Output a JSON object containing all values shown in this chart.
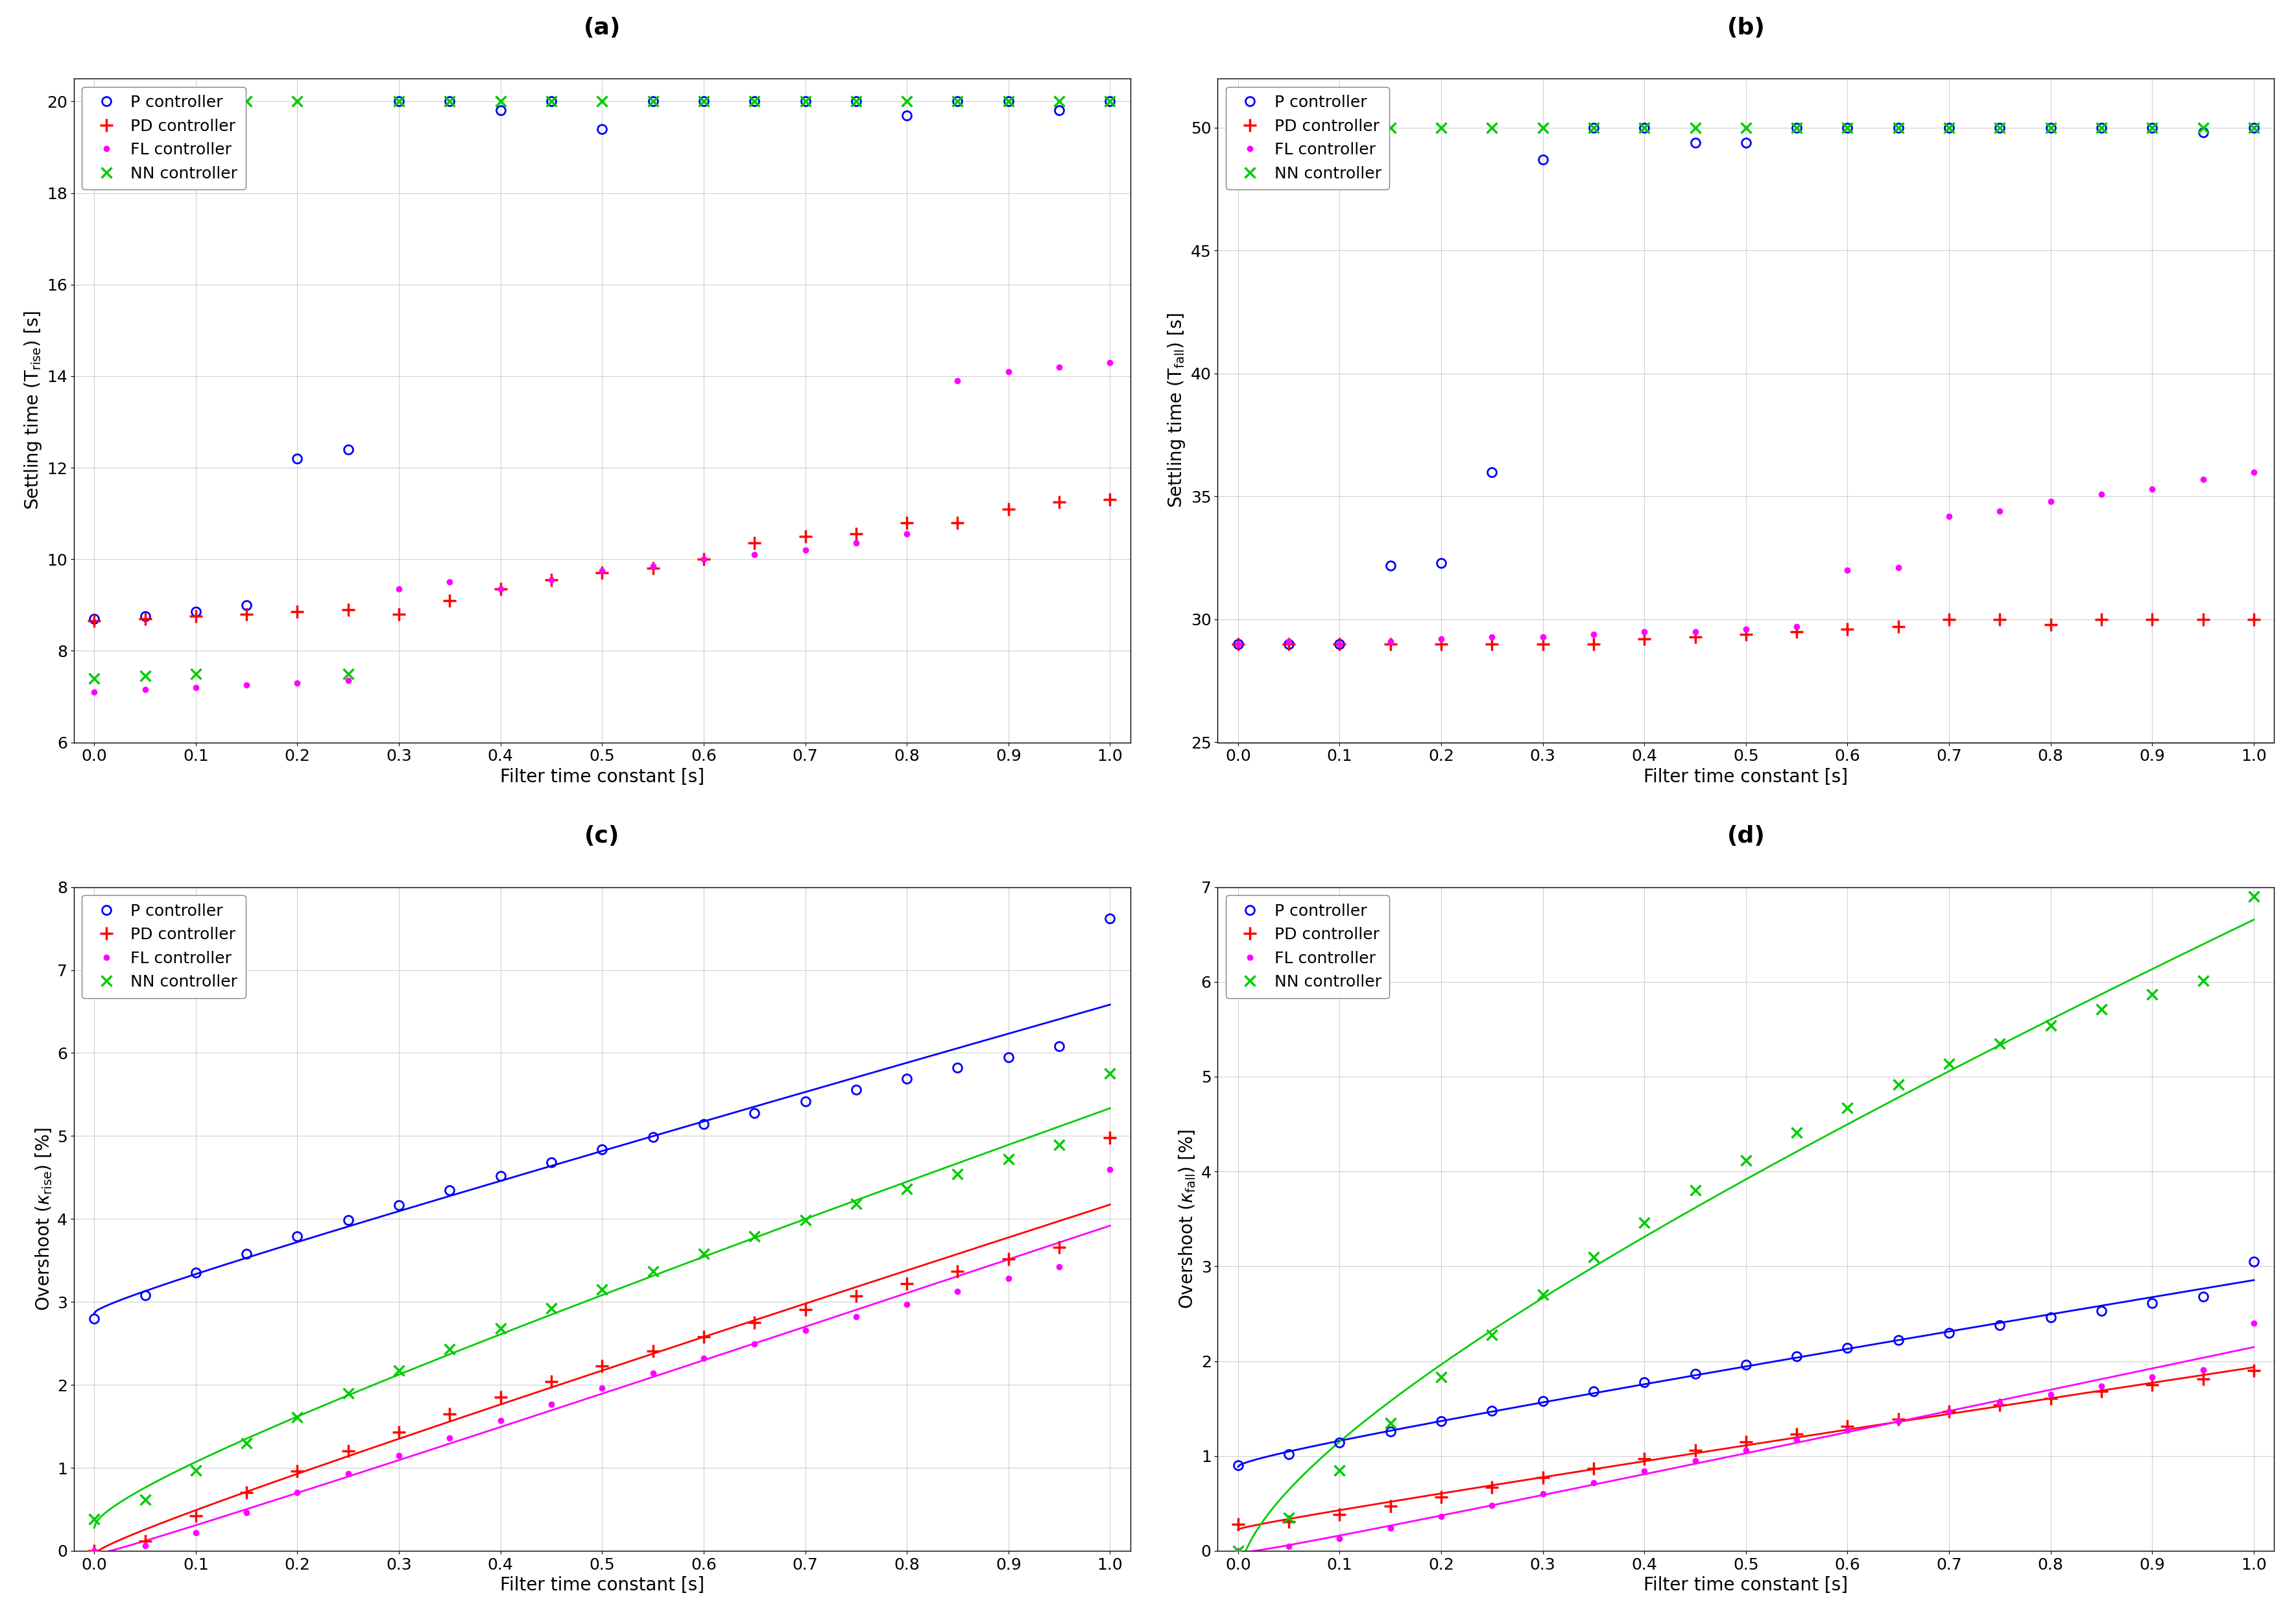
{
  "fig_width": 35.41,
  "fig_height": 24.93,
  "background_color": "#ffffff",
  "subplot_labels": [
    "(a)",
    "(b)",
    "(c)",
    "(d)"
  ],
  "label_fontsize": 26,
  "legend_fontsize": 18,
  "tick_fontsize": 18,
  "axis_label_fontsize": 20,
  "controllers": [
    "P controller",
    "PD controller",
    "FL controller",
    "NN controller"
  ],
  "colors": [
    "#0000FF",
    "#FF0000",
    "#FF00FF",
    "#00CC00"
  ],
  "markers": [
    "o",
    "+",
    ".",
    "x"
  ],
  "filter_tc": [
    0.0,
    0.05,
    0.1,
    0.15,
    0.2,
    0.25,
    0.3,
    0.35,
    0.4,
    0.45,
    0.5,
    0.55,
    0.6,
    0.65,
    0.7,
    0.75,
    0.8,
    0.85,
    0.9,
    0.95,
    1.0
  ],
  "plot_a": {
    "xlabel": "Filter time constant [s]",
    "ylabel": "Settling time (T$_\\mathregular{rise}$) [s]",
    "ylim": [
      6,
      20.5
    ],
    "yticks": [
      6,
      8,
      10,
      12,
      14,
      16,
      18,
      20
    ],
    "xlim": [
      -0.02,
      1.02
    ],
    "P": [
      8.7,
      8.75,
      8.85,
      9.0,
      12.2,
      12.4,
      20.0,
      20.0,
      19.8,
      20.0,
      19.4,
      20.0,
      20.0,
      20.0,
      20.0,
      20.0,
      19.7,
      20.0,
      20.0,
      19.8,
      20.0
    ],
    "PD": [
      8.65,
      8.7,
      8.75,
      8.8,
      8.85,
      8.9,
      8.8,
      9.1,
      9.35,
      9.55,
      9.7,
      9.8,
      10.0,
      10.35,
      10.5,
      10.55,
      10.8,
      10.8,
      11.1,
      11.25,
      11.3
    ],
    "FL": [
      7.1,
      7.15,
      7.2,
      7.25,
      7.3,
      7.35,
      9.35,
      9.5,
      9.35,
      9.55,
      9.75,
      9.85,
      10.0,
      10.1,
      10.2,
      10.35,
      10.55,
      13.9,
      14.1,
      14.2,
      14.3
    ],
    "NN": [
      7.4,
      7.45,
      7.5,
      20.0,
      20.0,
      7.5,
      20.0,
      20.0,
      20.0,
      20.0,
      20.0,
      20.0,
      20.0,
      20.0,
      20.0,
      20.0,
      20.0,
      20.0,
      20.0,
      20.0,
      20.0
    ]
  },
  "plot_b": {
    "xlabel": "Filter time constant [s]",
    "ylabel": "Settling time (T$_\\mathregular{fall}$) [s]",
    "ylim": [
      25,
      52
    ],
    "yticks": [
      25,
      30,
      35,
      40,
      45,
      50
    ],
    "xlim": [
      -0.02,
      1.02
    ],
    "P": [
      29.0,
      29.0,
      29.0,
      32.2,
      32.3,
      36.0,
      48.7,
      50.0,
      50.0,
      49.4,
      49.4,
      50.0,
      50.0,
      50.0,
      50.0,
      50.0,
      50.0,
      50.0,
      50.0,
      49.8,
      50.0
    ],
    "PD": [
      29.0,
      29.0,
      29.0,
      29.0,
      29.0,
      29.0,
      29.0,
      29.0,
      29.2,
      29.3,
      29.4,
      29.5,
      29.6,
      29.7,
      30.0,
      30.0,
      29.8,
      30.0,
      30.0,
      30.0,
      30.0
    ],
    "FL": [
      29.0,
      29.1,
      29.0,
      29.1,
      29.2,
      29.3,
      29.3,
      29.4,
      29.5,
      29.5,
      29.6,
      29.7,
      32.0,
      32.1,
      34.2,
      34.4,
      34.8,
      35.1,
      35.3,
      35.7,
      36.0
    ],
    "NN": [
      50.0,
      50.0,
      50.0,
      50.0,
      50.0,
      50.0,
      50.0,
      50.0,
      50.0,
      50.0,
      50.0,
      50.0,
      50.0,
      50.0,
      50.0,
      50.0,
      50.0,
      50.0,
      50.0,
      50.0,
      50.0
    ]
  },
  "plot_c": {
    "xlabel": "Filter time constant [s]",
    "ylabel": "Overshoot ($\\kappa_\\mathregular{rise}$) [%]",
    "ylim": [
      0,
      8.0
    ],
    "yticks": [
      0,
      1,
      2,
      3,
      4,
      5,
      6,
      7,
      8
    ],
    "xlim": [
      -0.02,
      1.02
    ],
    "P": [
      2.8,
      3.08,
      3.35,
      3.58,
      3.79,
      3.99,
      4.17,
      4.35,
      4.52,
      4.68,
      4.84,
      4.99,
      5.14,
      5.28,
      5.42,
      5.56,
      5.69,
      5.82,
      5.95,
      6.08,
      7.62
    ],
    "PD": [
      0.0,
      0.12,
      0.42,
      0.7,
      0.96,
      1.2,
      1.43,
      1.65,
      1.85,
      2.04,
      2.23,
      2.41,
      2.58,
      2.75,
      2.91,
      3.07,
      3.22,
      3.37,
      3.52,
      3.66,
      4.98
    ],
    "FL": [
      0.0,
      0.06,
      0.22,
      0.46,
      0.7,
      0.93,
      1.15,
      1.36,
      1.57,
      1.77,
      1.96,
      2.14,
      2.32,
      2.49,
      2.66,
      2.82,
      2.97,
      3.13,
      3.28,
      3.42,
      4.6
    ],
    "NN": [
      0.38,
      0.62,
      0.97,
      1.3,
      1.61,
      1.9,
      2.17,
      2.43,
      2.68,
      2.92,
      3.15,
      3.37,
      3.58,
      3.79,
      3.99,
      4.18,
      4.36,
      4.54,
      4.72,
      4.89,
      5.75
    ]
  },
  "plot_d": {
    "xlabel": "Filter time constant [s]",
    "ylabel": "Overshoot ($\\kappa_\\mathregular{fall}$) [%]",
    "ylim": [
      0,
      7.0
    ],
    "yticks": [
      0,
      1,
      2,
      3,
      4,
      5,
      6,
      7
    ],
    "xlim": [
      -0.02,
      1.02
    ],
    "P": [
      0.9,
      1.02,
      1.14,
      1.26,
      1.37,
      1.48,
      1.58,
      1.68,
      1.78,
      1.87,
      1.96,
      2.05,
      2.14,
      2.22,
      2.3,
      2.38,
      2.46,
      2.53,
      2.61,
      2.68,
      3.05
    ],
    "PD": [
      0.28,
      0.31,
      0.38,
      0.47,
      0.57,
      0.67,
      0.77,
      0.87,
      0.97,
      1.06,
      1.15,
      1.23,
      1.31,
      1.39,
      1.47,
      1.54,
      1.61,
      1.68,
      1.75,
      1.81,
      1.9
    ],
    "FL": [
      0.0,
      0.05,
      0.13,
      0.24,
      0.36,
      0.48,
      0.6,
      0.72,
      0.84,
      0.95,
      1.06,
      1.17,
      1.27,
      1.37,
      1.47,
      1.56,
      1.65,
      1.74,
      1.83,
      1.91,
      2.4
    ],
    "NN": [
      0.0,
      0.35,
      0.85,
      1.35,
      1.83,
      2.28,
      2.7,
      3.1,
      3.46,
      3.8,
      4.12,
      4.41,
      4.67,
      4.92,
      5.14,
      5.35,
      5.54,
      5.71,
      5.87,
      6.01,
      6.9
    ]
  }
}
